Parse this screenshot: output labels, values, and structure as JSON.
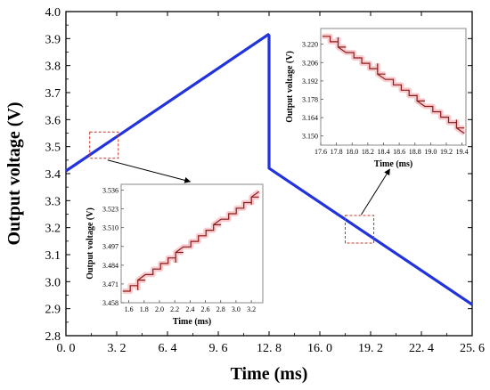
{
  "chart_data": [
    {
      "type": "line",
      "role": "main",
      "xlabel": "Time (ms)",
      "ylabel": "Output voltage (V)",
      "xlim": [
        0,
        25.6
      ],
      "ylim": [
        2.8,
        4.0
      ],
      "xticks": [
        0.0,
        3.2,
        6.4,
        9.6,
        12.8,
        16.0,
        19.2,
        22.4,
        25.6
      ],
      "xtick_labels": [
        "0. 0",
        "3. 2",
        "6. 4",
        "9. 6",
        "12. 8",
        "16. 0",
        "19. 2",
        "22. 4",
        "25. 6"
      ],
      "yticks": [
        2.8,
        2.9,
        3.0,
        3.1,
        3.2,
        3.3,
        3.4,
        3.5,
        3.6,
        3.7,
        3.8,
        3.9,
        4.0
      ],
      "ytick_labels": [
        "2.8",
        "2.9",
        "3.0",
        "3.1",
        "3.2",
        "3.3",
        "3.4",
        "3.5",
        "3.6",
        "3.7",
        "3.8",
        "3.9",
        "4.0"
      ],
      "grid": false,
      "series": [
        {
          "color": "#2233dd",
          "x": [
            0.0,
            12.75,
            12.8,
            12.8,
            25.6
          ],
          "y": [
            3.41,
            3.915,
            3.91,
            3.42,
            2.915
          ]
        }
      ],
      "highlight_boxes": [
        {
          "x": [
            1.5,
            3.3
          ],
          "y": [
            3.457,
            3.554
          ],
          "links_to": "inset-left"
        },
        {
          "x": [
            17.6,
            19.4
          ],
          "y": [
            3.143,
            3.245
          ],
          "links_to": "inset-right"
        }
      ]
    },
    {
      "type": "line",
      "role": "inset-left",
      "xlabel": "Time (ms)",
      "ylabel": "Output voltage (V)",
      "xlim": [
        1.5,
        3.35
      ],
      "ylim": [
        3.458,
        3.54
      ],
      "xticks": [
        1.6,
        1.8,
        2.0,
        2.2,
        2.4,
        2.6,
        2.8,
        3.0,
        3.2
      ],
      "xtick_labels": [
        "1.6",
        "1.8",
        "2.0",
        "2.2",
        "2.4",
        "2.6",
        "2.8",
        "3.0",
        "3.2"
      ],
      "yticks": [
        3.458,
        3.471,
        3.484,
        3.497,
        3.51,
        3.523,
        3.536
      ],
      "ytick_labels": [
        "3.458",
        "3.471",
        "3.484",
        "3.497",
        "3.510",
        "3.523",
        "3.536"
      ],
      "grid": false,
      "series": [
        {
          "color": "#8b1a1a",
          "trend": {
            "x": [
              1.52,
              3.3
            ],
            "y": [
              3.466,
              3.535
            ]
          }
        }
      ]
    },
    {
      "type": "line",
      "role": "inset-right",
      "xlabel": "Time (ms)",
      "ylabel": "Output voltage (V)",
      "xlim": [
        17.6,
        19.45
      ],
      "ylim": [
        3.143,
        3.232
      ],
      "xticks": [
        17.6,
        17.8,
        18.0,
        18.2,
        18.4,
        18.6,
        18.8,
        19.0,
        19.2,
        19.4
      ],
      "xtick_labels": [
        "17.6",
        "17.8",
        "18.0",
        "18.2",
        "18.4",
        "18.6",
        "18.8",
        "19.0",
        "19.2",
        "19.4"
      ],
      "yticks": [
        3.15,
        3.164,
        3.178,
        3.192,
        3.206,
        3.22
      ],
      "ytick_labels": [
        "3.150",
        "3.164",
        "3.178",
        "3.192",
        "3.206",
        "3.220"
      ],
      "grid": false,
      "series": [
        {
          "color": "#8b1a1a",
          "trend": {
            "x": [
              17.62,
              19.43
            ],
            "y": [
              3.226,
              3.152
            ]
          }
        }
      ]
    }
  ]
}
